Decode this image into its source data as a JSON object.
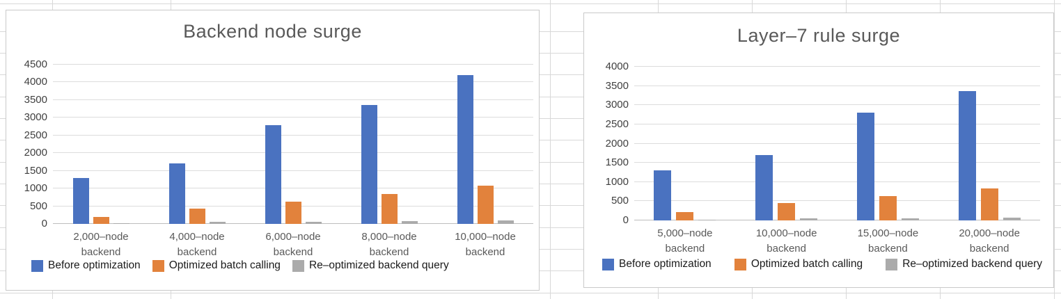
{
  "colors": {
    "series_blue": "#4a72c0",
    "series_orange": "#e2823c",
    "series_gray": "#ababab",
    "title_text": "#595959",
    "axis_text": "#3f3f3f",
    "chart_gridline": "#dcdcdc",
    "panel_border": "#c9c9c9",
    "sheet_gridline": "#d8d8d8"
  },
  "chart_data": [
    {
      "type": "bar",
      "title": "Backend node surge",
      "categories": [
        [
          "2,000–node",
          "backend"
        ],
        [
          "4,000–node",
          "backend"
        ],
        [
          "6,000–node",
          "backend"
        ],
        [
          "8,000–node",
          "backend"
        ],
        [
          "10,000–node",
          "backend"
        ]
      ],
      "series": [
        {
          "name": "Before optimization",
          "color": "#4a72c0",
          "values": [
            1300,
            1700,
            2800,
            3370,
            4200
          ]
        },
        {
          "name": "Optimized batch calling",
          "color": "#e2823c",
          "values": [
            200,
            440,
            630,
            840,
            1080
          ]
        },
        {
          "name": "Re–optimized backend query",
          "color": "#ababab",
          "values": [
            15,
            50,
            50,
            80,
            90
          ]
        }
      ],
      "ylim": [
        0,
        4500
      ],
      "ytick_step": 500,
      "yticks": [
        "0",
        "500",
        "1000",
        "1500",
        "2000",
        "2500",
        "3000",
        "3500",
        "4000",
        "4500"
      ],
      "grid": true,
      "legend_position": "bottom"
    },
    {
      "type": "bar",
      "title": "Layer–7 rule surge",
      "categories": [
        [
          "5,000–node",
          "backend"
        ],
        [
          "10,000–node",
          "backend"
        ],
        [
          "15,000–node",
          "backend"
        ],
        [
          "20,000–node",
          "backend"
        ]
      ],
      "series": [
        {
          "name": "Before optimization",
          "color": "#4a72c0",
          "values": [
            1300,
            1700,
            2800,
            3370
          ]
        },
        {
          "name": "Optimized batch calling",
          "color": "#e2823c",
          "values": [
            220,
            450,
            640,
            830
          ]
        },
        {
          "name": "Re–optimized backend query",
          "color": "#ababab",
          "values": [
            15,
            50,
            50,
            80
          ]
        }
      ],
      "ylim": [
        0,
        4000
      ],
      "ytick_step": 500,
      "yticks": [
        "0",
        "500",
        "1000",
        "1500",
        "2000",
        "2500",
        "3000",
        "3500",
        "4000"
      ],
      "grid": true,
      "legend_position": "bottom"
    }
  ]
}
